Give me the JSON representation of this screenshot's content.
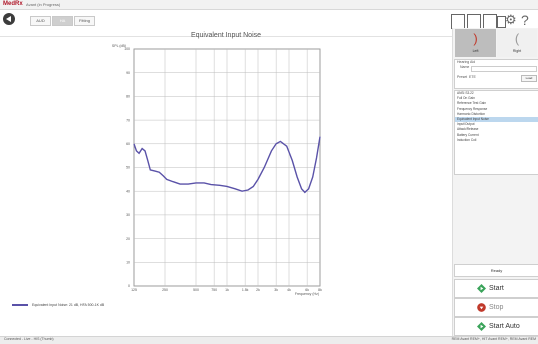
{
  "app": {
    "logo": "MedRx",
    "session": "Avant (in Progress)"
  },
  "toolbar": {
    "tabs": [
      {
        "label": "AUD"
      },
      {
        "label": "HA",
        "active": true
      },
      {
        "label": "Fitting"
      }
    ]
  },
  "chart_data": {
    "type": "line",
    "title": "Equivalent Input Noise",
    "ylabel": "SPL (dB)",
    "xlabel": "Frequency (Hz)",
    "ylim": [
      0,
      100
    ],
    "yticks": [
      "100",
      "90",
      "80",
      "70",
      "60",
      "50",
      "40",
      "30",
      "20",
      "10",
      "0"
    ],
    "xticks": [
      "125",
      "250",
      "500",
      "750",
      "1k",
      "1.5k",
      "2k",
      "3k",
      "4k",
      "6k",
      "8k"
    ],
    "xlim_hz": [
      125,
      8000
    ],
    "grid": true,
    "series": [
      {
        "name": "Equivalent Input Noise: 21 dB, HFA 500-1K dB",
        "color": "#5a52a8",
        "points": [
          [
            125,
            60
          ],
          [
            132,
            57
          ],
          [
            140,
            56
          ],
          [
            150,
            58
          ],
          [
            160,
            57
          ],
          [
            170,
            53
          ],
          [
            180,
            49
          ],
          [
            200,
            48.5
          ],
          [
            220,
            48
          ],
          [
            240,
            46.5
          ],
          [
            260,
            45
          ],
          [
            300,
            44
          ],
          [
            350,
            43
          ],
          [
            420,
            43
          ],
          [
            500,
            43.5
          ],
          [
            600,
            43.5
          ],
          [
            700,
            42.8
          ],
          [
            850,
            42.5
          ],
          [
            1000,
            42
          ],
          [
            1200,
            41
          ],
          [
            1400,
            40
          ],
          [
            1600,
            40.5
          ],
          [
            1800,
            42
          ],
          [
            2000,
            45
          ],
          [
            2300,
            50
          ],
          [
            2700,
            57
          ],
          [
            3000,
            60
          ],
          [
            3300,
            61
          ],
          [
            3800,
            59
          ],
          [
            4300,
            53
          ],
          [
            4800,
            46
          ],
          [
            5300,
            41
          ],
          [
            5700,
            39.5
          ],
          [
            6200,
            41
          ],
          [
            6800,
            46
          ],
          [
            7400,
            54
          ],
          [
            8000,
            63
          ]
        ]
      }
    ]
  },
  "right_panel": {
    "ears": {
      "left_label": "Left",
      "right_label": "Right",
      "left_glyph": "?",
      "right_glyph": "?"
    },
    "settings": {
      "hearing_aid_label": "Hearing Aid",
      "name_label": "Name",
      "preset_label": "Preset",
      "preset_value": "ETE",
      "load_label": "Load"
    },
    "tests": [
      {
        "label": "ANSI S3.22"
      },
      {
        "label": "Full On Gain"
      },
      {
        "label": "Reference Test Gain"
      },
      {
        "label": "Frequency Response"
      },
      {
        "label": "Harmonic Distortion"
      },
      {
        "label": "Equivalent Input Noise",
        "selected": true
      },
      {
        "label": "Input/Output"
      },
      {
        "label": "Attack/Release"
      },
      {
        "label": "Battery Current"
      },
      {
        "label": "Induction Coil"
      }
    ],
    "status": "Ready",
    "buttons": {
      "start": "Start",
      "stop": "Stop",
      "start_auto": "Start Auto"
    }
  },
  "statusbar": {
    "left": "Connected  -  Live - HIS (Thumb)",
    "right": "REM Avant REM+, HIT Avant REM+, REM Avant REM"
  }
}
